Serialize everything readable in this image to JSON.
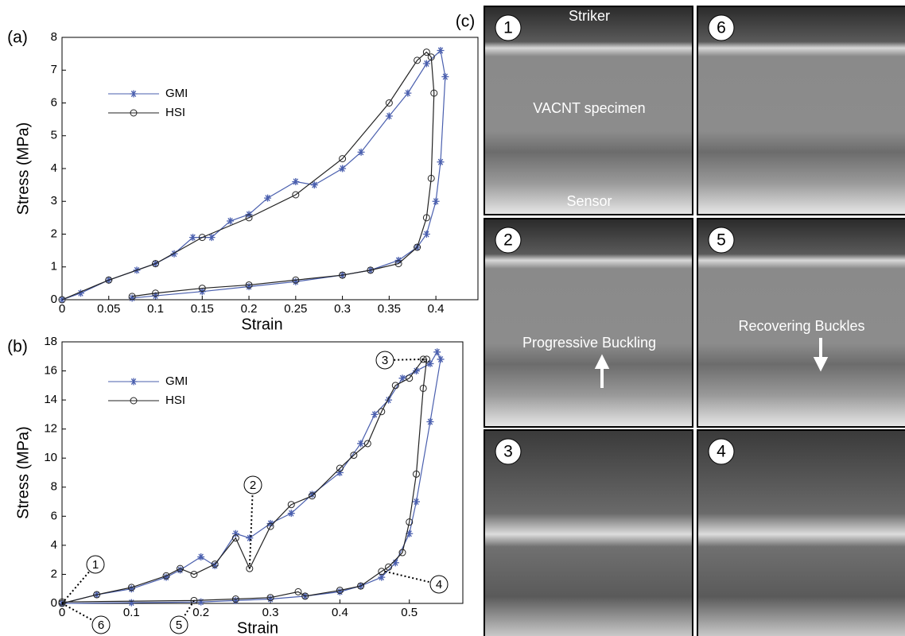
{
  "chart_data": [
    {
      "type": "line",
      "panel_label": "(a)",
      "x_label": "Strain",
      "y_label": "Stress (MPa)",
      "xlim": [
        0,
        0.445
      ],
      "ylim": [
        0,
        8
      ],
      "xticks": [
        0,
        0.05,
        0.1,
        0.15,
        0.2,
        0.25,
        0.3,
        0.35,
        0.4
      ],
      "yticks": [
        0,
        1,
        2,
        3,
        4,
        5,
        6,
        7,
        8
      ],
      "legend": "upper left",
      "series": [
        {
          "name": "GMI",
          "color": "#4a5fae",
          "marker": "*",
          "x": [
            0,
            0.02,
            0.05,
            0.08,
            0.1,
            0.12,
            0.14,
            0.16,
            0.18,
            0.2,
            0.22,
            0.25,
            0.27,
            0.3,
            0.32,
            0.35,
            0.37,
            0.39,
            0.405,
            0.41,
            0.405,
            0.4,
            0.39,
            0.38,
            0.36,
            0.33,
            0.3,
            0.25,
            0.2,
            0.15,
            0.1,
            0.075
          ],
          "values": [
            0,
            0.2,
            0.6,
            0.9,
            1.1,
            1.4,
            1.9,
            1.9,
            2.4,
            2.6,
            3.1,
            3.6,
            3.5,
            4.0,
            4.5,
            5.6,
            6.3,
            7.2,
            7.6,
            6.8,
            4.2,
            3.0,
            2.0,
            1.6,
            1.2,
            0.9,
            0.75,
            0.55,
            0.4,
            0.25,
            0.12,
            0.05
          ]
        },
        {
          "name": "HSI",
          "color": "#222222",
          "marker": "o",
          "x": [
            0,
            0.05,
            0.1,
            0.15,
            0.2,
            0.25,
            0.3,
            0.35,
            0.38,
            0.39,
            0.395,
            0.398,
            0.395,
            0.39,
            0.38,
            0.36,
            0.33,
            0.3,
            0.25,
            0.2,
            0.15,
            0.1,
            0.075
          ],
          "values": [
            0,
            0.6,
            1.1,
            1.9,
            2.5,
            3.2,
            4.3,
            6.0,
            7.3,
            7.55,
            7.4,
            6.3,
            3.7,
            2.5,
            1.6,
            1.1,
            0.9,
            0.75,
            0.6,
            0.45,
            0.35,
            0.2,
            0.1
          ]
        }
      ]
    },
    {
      "type": "line",
      "panel_label": "(b)",
      "x_label": "Strain",
      "y_label": "Stress (MPa)",
      "xlim": [
        0,
        0.577
      ],
      "ylim": [
        0,
        18
      ],
      "xticks": [
        0,
        0.1,
        0.2,
        0.3,
        0.4,
        0.5
      ],
      "yticks": [
        0,
        2,
        4,
        6,
        8,
        10,
        12,
        14,
        16,
        18
      ],
      "legend": "upper left",
      "series": [
        {
          "name": "GMI",
          "color": "#4a5fae",
          "marker": "*",
          "x": [
            0,
            0.05,
            0.1,
            0.15,
            0.17,
            0.2,
            0.22,
            0.25,
            0.27,
            0.3,
            0.33,
            0.36,
            0.4,
            0.43,
            0.45,
            0.47,
            0.49,
            0.51,
            0.53,
            0.54,
            0.545,
            0.53,
            0.51,
            0.5,
            0.48,
            0.46,
            0.43,
            0.4,
            0.35,
            0.3,
            0.25,
            0.2,
            0.1,
            0
          ],
          "values": [
            0,
            0.6,
            1.0,
            1.8,
            2.3,
            3.2,
            2.6,
            4.8,
            4.5,
            5.5,
            6.2,
            7.5,
            9.0,
            11.0,
            13.0,
            14.0,
            15.5,
            16.0,
            16.5,
            17.3,
            16.8,
            12.5,
            7.0,
            4.8,
            2.8,
            1.8,
            1.2,
            0.8,
            0.5,
            0.3,
            0.2,
            0.1,
            0.05,
            0
          ]
        },
        {
          "name": "HSI",
          "color": "#222222",
          "marker": "o",
          "x": [
            0,
            0.05,
            0.1,
            0.15,
            0.17,
            0.19,
            0.22,
            0.25,
            0.27,
            0.3,
            0.33,
            0.36,
            0.4,
            0.42,
            0.44,
            0.46,
            0.48,
            0.5,
            0.52,
            0.525,
            0.52,
            0.51,
            0.5,
            0.49,
            0.47,
            0.46,
            0.43,
            0.4,
            0.35,
            0.34,
            0.3,
            0.25,
            0.19,
            0
          ],
          "values": [
            0,
            0.6,
            1.1,
            1.9,
            2.4,
            2.0,
            2.7,
            4.5,
            2.4,
            5.3,
            6.8,
            7.4,
            9.3,
            10.2,
            11.0,
            13.2,
            15.0,
            15.5,
            16.8,
            16.8,
            14.8,
            8.9,
            5.6,
            3.5,
            2.5,
            2.2,
            1.2,
            0.9,
            0.5,
            0.8,
            0.4,
            0.3,
            0.2,
            0.1
          ]
        }
      ],
      "annotations": [
        {
          "label": "1",
          "x": 0,
          "y": 0
        },
        {
          "label": "6",
          "x": 0,
          "y": 0
        },
        {
          "label": "2",
          "x": 0.27,
          "y": 2.4
        },
        {
          "label": "5",
          "x": 0.19,
          "y": 0.2
        },
        {
          "label": "3",
          "x": 0.52,
          "y": 16.8
        },
        {
          "label": "4",
          "x": 0.465,
          "y": 2.2
        }
      ]
    }
  ],
  "panel_c": {
    "label": "(c)",
    "frames": [
      "1",
      "6",
      "2",
      "5",
      "3",
      "4"
    ],
    "striker": "Striker",
    "specimen": "VACNT specimen",
    "sensor": "Sensor",
    "progressive": "Progressive Buckling",
    "recovering": "Recovering Buckles"
  }
}
